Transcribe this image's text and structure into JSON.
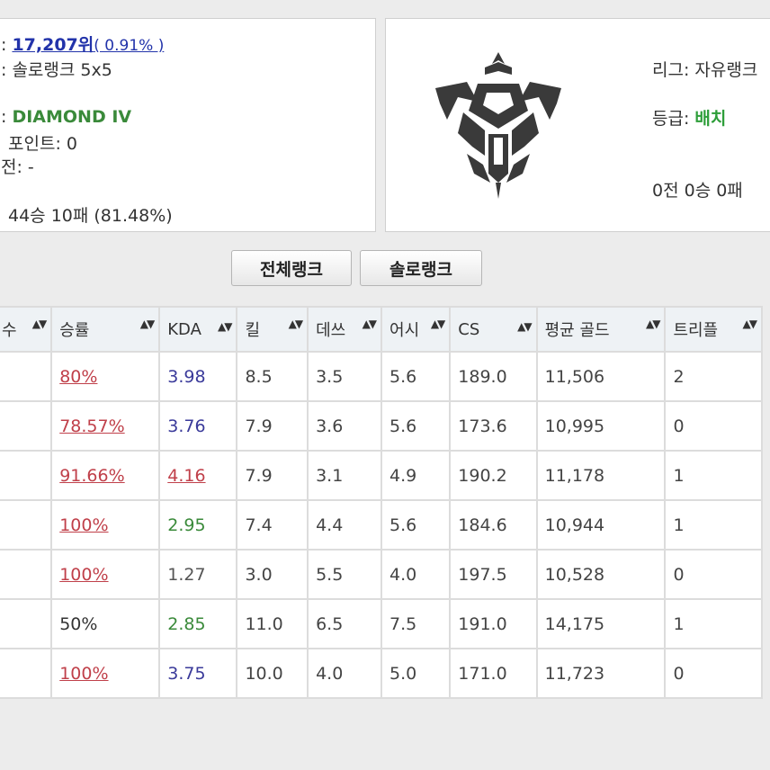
{
  "solo": {
    "rank_value": "17,207위",
    "rank_pct": "( 0.91% )",
    "queue": "솔로랭크 5x5",
    "tier": "DIAMOND IV",
    "points": "포인트: 0",
    "promo": "전: -",
    "record": "44승 10패 (81.48%)"
  },
  "flex": {
    "league": "리그: 자유랭크",
    "grade_label": "등급:",
    "grade_value": "배치",
    "record": "0전 0승 0패"
  },
  "tabs": {
    "all_label": "전체랭크",
    "solo_label": "솔로랭크"
  },
  "table": {
    "headers": [
      "수",
      "승률",
      "KDA",
      "킬",
      "데쓰",
      "어시",
      "CS",
      "평균 골드",
      "트리플"
    ],
    "rows": [
      {
        "winrate": "80%",
        "winrate_style": "wr-red",
        "kda": "3.98",
        "kda_style": "kda-blue",
        "kill": "8.5",
        "death": "3.5",
        "assist": "5.6",
        "cs": "189.0",
        "gold": "11,506",
        "triple": "2"
      },
      {
        "winrate": "78.57%",
        "winrate_style": "wr-red",
        "kda": "3.76",
        "kda_style": "kda-blue",
        "kill": "7.9",
        "death": "3.6",
        "assist": "5.6",
        "cs": "173.6",
        "gold": "10,995",
        "triple": "0"
      },
      {
        "winrate": "91.66%",
        "winrate_style": "wr-red",
        "kda": "4.16",
        "kda_style": "kda-red",
        "kill": "7.9",
        "death": "3.1",
        "assist": "4.9",
        "cs": "190.2",
        "gold": "11,178",
        "triple": "1"
      },
      {
        "winrate": "100%",
        "winrate_style": "wr-red",
        "kda": "2.95",
        "kda_style": "kda-green",
        "kill": "7.4",
        "death": "4.4",
        "assist": "5.6",
        "cs": "184.6",
        "gold": "10,944",
        "triple": "1"
      },
      {
        "winrate": "100%",
        "winrate_style": "wr-red",
        "kda": "1.27",
        "kda_style": "kda-plain",
        "kill": "3.0",
        "death": "5.5",
        "assist": "4.0",
        "cs": "197.5",
        "gold": "10,528",
        "triple": "0"
      },
      {
        "winrate": "50%",
        "winrate_style": "wr-plain",
        "kda": "2.85",
        "kda_style": "kda-green",
        "kill": "11.0",
        "death": "6.5",
        "assist": "7.5",
        "cs": "191.0",
        "gold": "14,175",
        "triple": "1"
      },
      {
        "winrate": "100%",
        "winrate_style": "wr-red",
        "kda": "3.75",
        "kda_style": "kda-blue",
        "kill": "10.0",
        "death": "4.0",
        "assist": "5.0",
        "cs": "171.0",
        "gold": "11,723",
        "triple": "0"
      }
    ]
  },
  "icons": {
    "sort": "sort-icon",
    "emblem": "diamond-emblem-icon"
  },
  "colors": {
    "rank_blue": "#2233aa",
    "tier_green": "#3a8a3a",
    "winrate_red": "#c0404a"
  }
}
